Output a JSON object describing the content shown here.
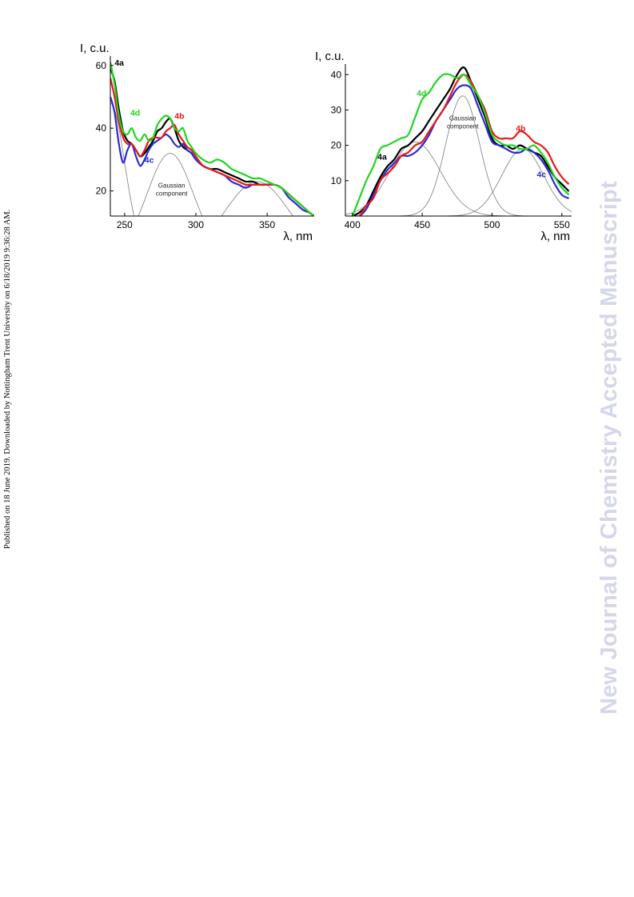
{
  "side_note": "Published on 18 June 2019. Downloaded by Nottingham Trent University on 6/18/2019 9:36:28 AM.",
  "watermark": "New Journal of Chemistry Accepted Manuscript",
  "colors": {
    "4a": "#000000",
    "4b": "#e81919",
    "4c": "#2b2bd6",
    "4d": "#1fd61f",
    "gauss": "#8a8a8a"
  },
  "chart_data": [
    {
      "type": "line",
      "ylabel": "I, c.u.",
      "xlabel": "λ, nm",
      "xlim": [
        240,
        383
      ],
      "ylim": [
        12,
        63
      ],
      "xticks": [
        250,
        300,
        350
      ],
      "yticks": [
        20,
        40,
        60
      ],
      "annotation": [
        "Gaussian",
        "component"
      ],
      "series": [
        {
          "name": "4a",
          "x": [
            240,
            243,
            246,
            249,
            252,
            255,
            258,
            261,
            264,
            267,
            270,
            273,
            276,
            279,
            282,
            285,
            288,
            291,
            294,
            297,
            300,
            305,
            310,
            315,
            320,
            325,
            330,
            335,
            340,
            345,
            350,
            355,
            360,
            365,
            370,
            375,
            380,
            383
          ],
          "values": [
            59,
            55,
            46,
            39,
            36,
            35,
            33,
            31,
            32,
            34,
            36,
            39,
            40,
            42,
            43,
            40,
            36,
            34,
            33,
            32,
            30,
            28,
            27,
            27,
            26,
            25,
            24,
            23,
            23,
            22,
            22,
            22,
            21,
            19,
            17,
            15,
            13,
            12
          ]
        },
        {
          "name": "4b",
          "x": [
            240,
            243,
            246,
            249,
            252,
            255,
            258,
            261,
            264,
            267,
            270,
            273,
            276,
            279,
            282,
            285,
            288,
            291,
            294,
            297,
            300,
            305,
            310,
            315,
            320,
            325,
            330,
            335,
            340,
            345,
            350,
            355,
            360,
            365,
            370,
            375,
            380,
            383
          ],
          "values": [
            56,
            50,
            42,
            37,
            35,
            35,
            33,
            31,
            33,
            36,
            37,
            37,
            37,
            39,
            40,
            41,
            38,
            36,
            34,
            33,
            31,
            28,
            27,
            26,
            25,
            24,
            23,
            22,
            22,
            22,
            22,
            22,
            21,
            19,
            17,
            15,
            13,
            12
          ]
        },
        {
          "name": "4c",
          "x": [
            240,
            243,
            246,
            249,
            252,
            255,
            258,
            261,
            264,
            267,
            270,
            273,
            276,
            279,
            282,
            285,
            288,
            291,
            294,
            297,
            300,
            305,
            310,
            315,
            320,
            325,
            330,
            335,
            340,
            345,
            350,
            355,
            360,
            365,
            370,
            375,
            380,
            383
          ],
          "values": [
            50,
            45,
            35,
            29,
            33,
            35,
            31,
            28,
            30,
            33,
            35,
            36,
            37,
            38,
            37,
            35,
            34,
            35,
            33,
            32,
            30,
            28,
            27,
            26,
            25,
            23,
            22,
            21,
            22,
            22,
            22,
            22,
            21,
            18,
            16,
            14,
            13,
            12
          ]
        },
        {
          "name": "4d",
          "x": [
            240,
            243,
            246,
            249,
            252,
            255,
            258,
            261,
            264,
            267,
            270,
            273,
            276,
            279,
            282,
            285,
            288,
            291,
            294,
            297,
            300,
            305,
            310,
            315,
            320,
            325,
            330,
            335,
            340,
            345,
            350,
            355,
            360,
            365,
            370,
            375,
            380,
            383
          ],
          "values": [
            61,
            54,
            44,
            39,
            38,
            40,
            37,
            36,
            38,
            36,
            37,
            41,
            43,
            44,
            43,
            40,
            39,
            40,
            36,
            34,
            32,
            30,
            29,
            30,
            29,
            27,
            26,
            25,
            24,
            24,
            23,
            22,
            21,
            19,
            17,
            15,
            13,
            12
          ]
        }
      ],
      "gaussians": [
        {
          "center": 240,
          "amplitude": 48,
          "sigma": 10
        },
        {
          "center": 282,
          "amplitude": 32,
          "sigma": 16
        },
        {
          "center": 343,
          "amplitude": 23,
          "sigma": 22
        }
      ],
      "labels": [
        {
          "series": "4a",
          "text": "4a",
          "x": 243,
          "y": 60
        },
        {
          "series": "4d",
          "text": "4d",
          "x": 254,
          "y": 44
        },
        {
          "series": "4b",
          "text": "4b",
          "x": 285,
          "y": 43
        },
        {
          "series": "4c",
          "text": "4c",
          "x": 264,
          "y": 29
        }
      ]
    },
    {
      "type": "line",
      "ylabel": "I, c.u.",
      "xlabel": "λ, nm",
      "xlim": [
        395,
        557
      ],
      "ylim": [
        0,
        43
      ],
      "xticks": [
        400,
        450,
        500,
        550
      ],
      "yticks": [
        10,
        20,
        30,
        40
      ],
      "annotation": [
        "Gaussian",
        "component"
      ],
      "series": [
        {
          "name": "4a",
          "x": [
            400,
            405,
            410,
            415,
            420,
            425,
            430,
            435,
            440,
            445,
            450,
            455,
            460,
            465,
            470,
            475,
            480,
            485,
            490,
            495,
            500,
            505,
            510,
            515,
            520,
            525,
            530,
            535,
            540,
            545,
            550,
            555
          ],
          "values": [
            0,
            1,
            3,
            7,
            11,
            14,
            16,
            19,
            20,
            22,
            24,
            27,
            30,
            33,
            36,
            40,
            42,
            38,
            33,
            28,
            22,
            20,
            20,
            19,
            20,
            19,
            18,
            17,
            14,
            11,
            9,
            7
          ]
        },
        {
          "name": "4b",
          "x": [
            400,
            405,
            410,
            415,
            420,
            425,
            430,
            435,
            440,
            445,
            450,
            455,
            460,
            465,
            470,
            475,
            480,
            485,
            490,
            495,
            500,
            505,
            510,
            515,
            520,
            525,
            530,
            535,
            540,
            545,
            550,
            555
          ],
          "values": [
            0,
            0,
            3,
            5,
            10,
            12,
            14,
            17,
            18,
            20,
            21,
            24,
            27,
            30,
            34,
            38,
            40,
            38,
            34,
            30,
            24,
            22,
            22,
            22,
            24,
            23,
            21,
            20,
            18,
            14,
            11,
            9
          ]
        },
        {
          "name": "4c",
          "x": [
            400,
            405,
            410,
            415,
            420,
            425,
            430,
            435,
            440,
            445,
            450,
            455,
            460,
            465,
            470,
            475,
            480,
            485,
            490,
            495,
            500,
            505,
            510,
            515,
            520,
            525,
            530,
            535,
            540,
            545,
            550,
            555
          ],
          "values": [
            0,
            0,
            2,
            6,
            10,
            13,
            15,
            17,
            17,
            18,
            20,
            23,
            27,
            30,
            33,
            36,
            37,
            36,
            31,
            26,
            21,
            20,
            19,
            18,
            18,
            19,
            18,
            16,
            13,
            9,
            6,
            5
          ]
        },
        {
          "name": "4d",
          "x": [
            400,
            405,
            410,
            415,
            420,
            425,
            430,
            435,
            440,
            445,
            450,
            455,
            460,
            465,
            470,
            475,
            480,
            485,
            490,
            495,
            500,
            505,
            510,
            515,
            520,
            525,
            530,
            535,
            540,
            545,
            550,
            555
          ],
          "values": [
            0,
            5,
            10,
            14,
            19,
            20,
            21,
            22,
            23,
            28,
            33,
            35,
            38,
            40,
            40,
            39,
            40,
            37,
            34,
            29,
            23,
            21,
            20,
            20,
            19,
            19,
            20,
            18,
            15,
            11,
            8,
            6
          ]
        }
      ],
      "gaussians": [
        {
          "center": 445,
          "amplitude": 21,
          "sigma": 18
        },
        {
          "center": 479,
          "amplitude": 34,
          "sigma": 12
        },
        {
          "center": 522,
          "amplitude": 19,
          "sigma": 15
        }
      ],
      "labels": [
        {
          "series": "4d",
          "text": "4d",
          "x": 446,
          "y": 34
        },
        {
          "series": "4a",
          "text": "4a",
          "x": 418,
          "y": 16
        },
        {
          "series": "4b",
          "text": "4b",
          "x": 517,
          "y": 24
        },
        {
          "series": "4c",
          "text": "4c",
          "x": 532,
          "y": 11
        }
      ]
    }
  ]
}
